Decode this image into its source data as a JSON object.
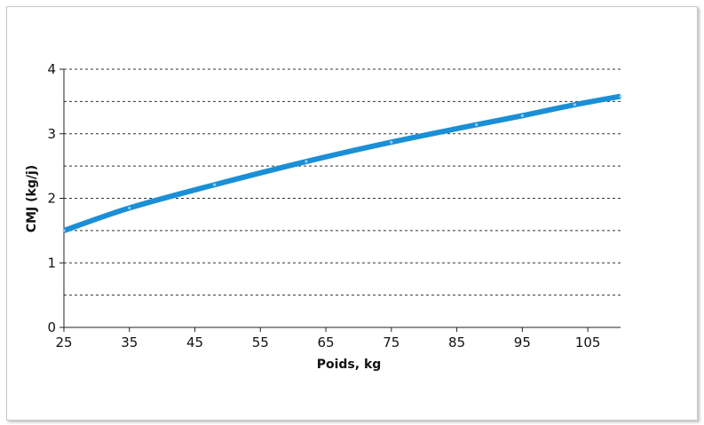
{
  "chart_data": {
    "type": "line",
    "xlabel": "Poids, kg",
    "ylabel": "CMJ (kg/j)",
    "xlim": [
      25,
      110
    ],
    "ylim": [
      0,
      4
    ],
    "x_ticks": [
      25,
      35,
      45,
      55,
      65,
      75,
      85,
      95,
      105
    ],
    "y_ticks": [
      0,
      1,
      2,
      3,
      4
    ],
    "grid_y": [
      0.5,
      1,
      1.5,
      2,
      2.5,
      3,
      3.5,
      4
    ],
    "grid": true,
    "line_color": "#1a8fd6",
    "series": [
      {
        "x": [
          25,
          35,
          48,
          62,
          75,
          88,
          95,
          103,
          110
        ],
        "values": [
          1.5,
          1.85,
          2.21,
          2.57,
          2.87,
          3.14,
          3.28,
          3.45,
          3.58
        ]
      }
    ]
  }
}
